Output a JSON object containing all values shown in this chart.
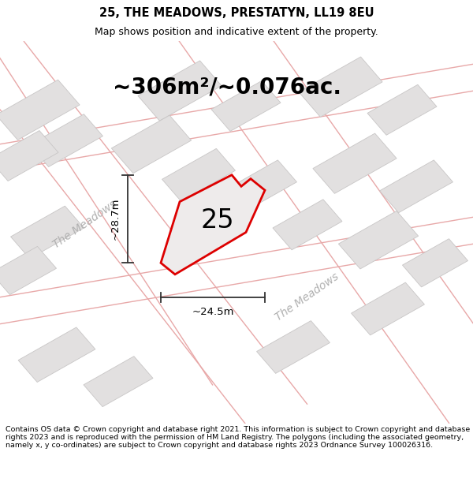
{
  "title_line1": "25, THE MEADOWS, PRESTATYN, LL19 8EU",
  "title_line2": "Map shows position and indicative extent of the property.",
  "area_text": "~306m²/~0.076ac.",
  "label_number": "25",
  "dim_width": "~24.5m",
  "dim_height": "~28.7m",
  "footer_text": "Contains OS data © Crown copyright and database right 2021. This information is subject to Crown copyright and database rights 2023 and is reproduced with the permission of HM Land Registry. The polygons (including the associated geometry, namely x, y co-ordinates) are subject to Crown copyright and database rights 2023 Ordnance Survey 100026316.",
  "bg_color": "#ffffff",
  "map_bg": "#f8f7f7",
  "plot_outline_color": "#dd0000",
  "plot_fill_color": "#eeebeb",
  "dim_line_color": "#333333",
  "road_label_color": "#b0b0b0",
  "building_fill": "#e2e0e0",
  "building_edge": "#c8c6c6",
  "road_line_color": "#e8a8a8",
  "title_fontsize": 10.5,
  "subtitle_fontsize": 9,
  "area_fontsize": 20,
  "label_fontsize": 24,
  "dim_fontsize": 9.5,
  "road_fontsize": 10,
  "footer_fontsize": 6.8,
  "road_lw": 1.0,
  "building_lw": 0.6,
  "plot_lw": 2.0
}
